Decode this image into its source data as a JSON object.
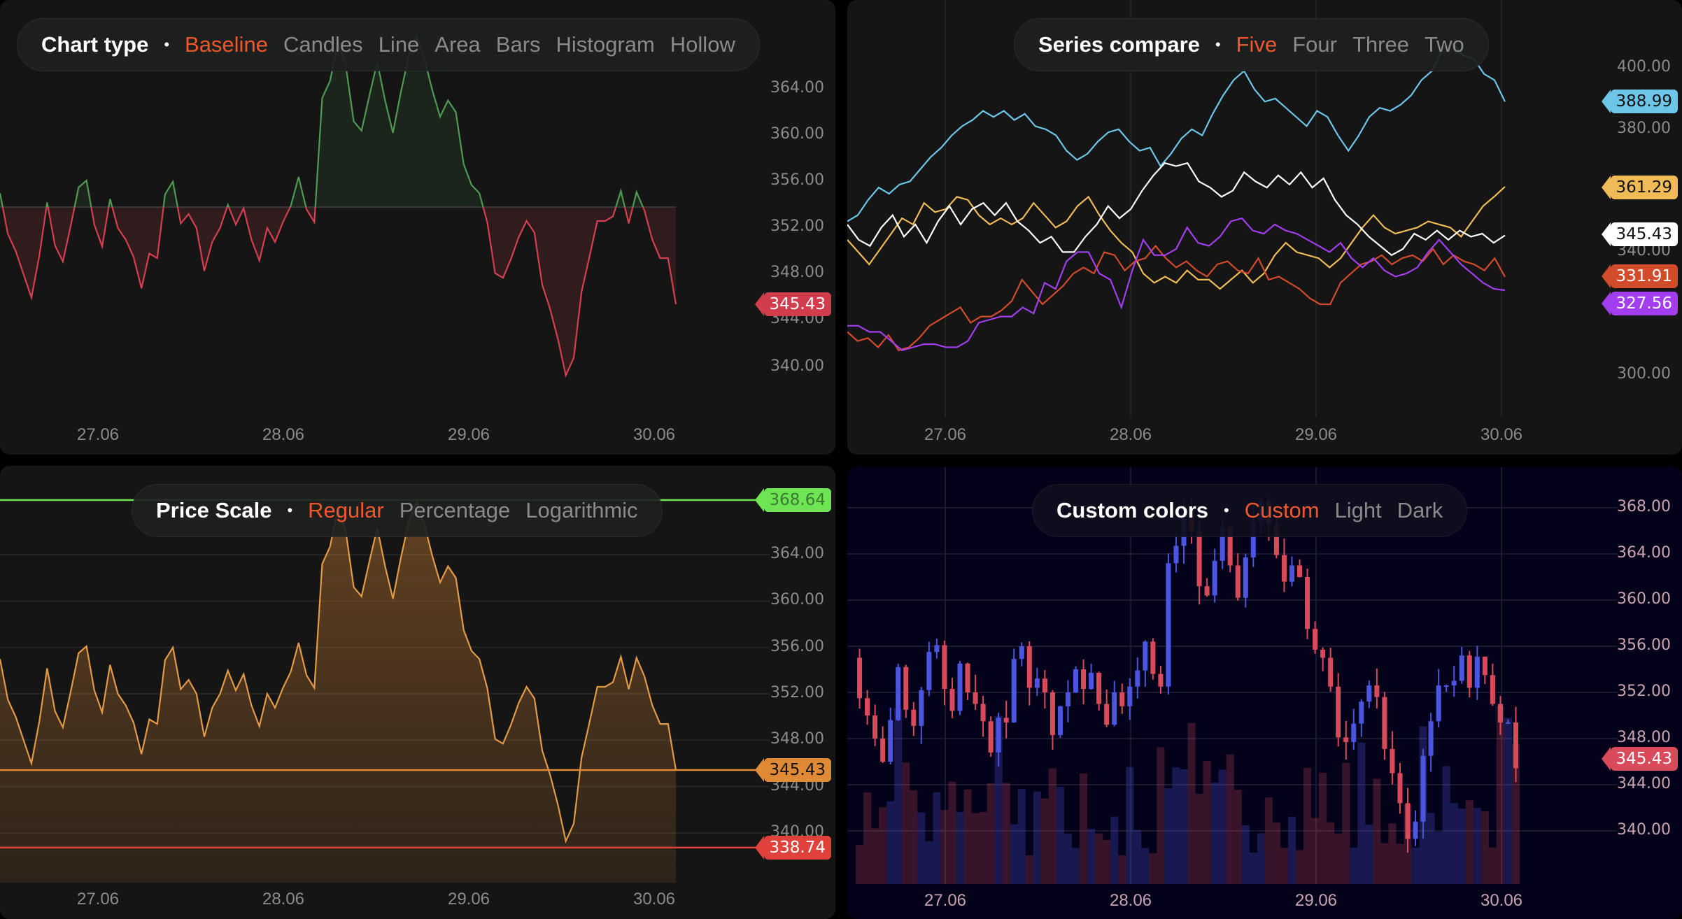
{
  "panels": {
    "baseline": {
      "toolbar": {
        "title": "Chart type",
        "options": [
          "Baseline",
          "Candles",
          "Line",
          "Area",
          "Bars",
          "Histogram",
          "Hollow"
        ],
        "active": 0
      },
      "scale": [
        "364.00",
        "360.00",
        "356.00",
        "352.00",
        "348.00",
        "344.00",
        "340.00"
      ],
      "time": [
        "27.06",
        "28.06",
        "29.06",
        "30.06"
      ],
      "last_price": "345.43",
      "colors": {
        "up": "#4f9a52",
        "down": "#d63f4f",
        "baseline": "#3a3a3a",
        "last": "#d23d4e"
      }
    },
    "compare": {
      "toolbar": {
        "title": "Series compare",
        "options": [
          "Five",
          "Four",
          "Three",
          "Two"
        ],
        "active": 0
      },
      "scale": [
        "400.00",
        "380.00",
        "340.00",
        "300.00"
      ],
      "time": [
        "27.06",
        "28.06",
        "29.06",
        "30.06"
      ],
      "tags": [
        {
          "value": "388.99",
          "color": "#6dc6e8",
          "text": "#111111"
        },
        {
          "value": "361.29",
          "color": "#efbb57",
          "text": "#111111"
        },
        {
          "value": "345.43",
          "color": "#ffffff",
          "text": "#111111"
        },
        {
          "value": "331.91",
          "color": "#d24b2a",
          "text": "#ffffff"
        },
        {
          "value": "327.56",
          "color": "#a23ef0",
          "text": "#ffffff"
        }
      ]
    },
    "pricescale": {
      "toolbar": {
        "title": "Price Scale",
        "options": [
          "Regular",
          "Percentage",
          "Logarithmic"
        ],
        "active": 0
      },
      "scale": [
        "364.00",
        "360.00",
        "356.00",
        "352.00",
        "348.00",
        "344.00",
        "340.00"
      ],
      "time": [
        "27.06",
        "28.06",
        "29.06",
        "30.06"
      ],
      "tags": [
        {
          "value": "368.64",
          "color": "#6ee553",
          "text": "#3b7a33",
          "role": "high"
        },
        {
          "value": "345.43",
          "color": "#e08a35",
          "text": "#111111",
          "role": "last"
        },
        {
          "value": "338.74",
          "color": "#e0413b",
          "text": "#ffffff",
          "role": "low"
        }
      ]
    },
    "custom": {
      "toolbar": {
        "title": "Custom colors",
        "options": [
          "Custom",
          "Light",
          "Dark"
        ],
        "active": 0
      },
      "scale": [
        "368.00",
        "364.00",
        "360.00",
        "356.00",
        "352.00",
        "348.00",
        "344.00",
        "340.00"
      ],
      "time": [
        "27.06",
        "28.06",
        "29.06",
        "30.06"
      ],
      "last_price": "345.43",
      "colors": {
        "up": "#4b55e0",
        "down": "#d94b5a",
        "bg": "#03021a",
        "scale_text": "#c9a3ad"
      }
    }
  },
  "chart_data": [
    {
      "type": "line",
      "title": "Chart type: Baseline",
      "x": [
        "27.06",
        "28.06",
        "29.06",
        "30.06"
      ],
      "baseline": 353.8,
      "ylim": [
        337,
        368
      ],
      "values": [
        355,
        351.5,
        350,
        348,
        346,
        349.6,
        354.2,
        350.5,
        349.1,
        352.2,
        355.5,
        356.1,
        352.3,
        350.4,
        354.5,
        352.0,
        351.0,
        349.5,
        346.8,
        349.8,
        349.4,
        354.9,
        356.0,
        352.4,
        353.2,
        352.0,
        348.3,
        350.8,
        352.0,
        354.0,
        352.3,
        353.7,
        351.0,
        349.2,
        352.0,
        350.8,
        352.5,
        353.9,
        356.4,
        353.6,
        352.5,
        363.2,
        364.7,
        368.0,
        366.0,
        361.2,
        360.4,
        363.4,
        366.3,
        363.0,
        360.2,
        363.7,
        366.8,
        368.6,
        366.6,
        363.9,
        361.6,
        363.0,
        362.0,
        357.5,
        355.7,
        355.0,
        352.5,
        348.1,
        347.7,
        349.3,
        351.2,
        352.6,
        351.6,
        347.1,
        345.0,
        342.4,
        339.3,
        340.8,
        346.5,
        349.5,
        352.6,
        352.6,
        353.0,
        355.2,
        352.4,
        355.1,
        353.5,
        351.0,
        349.4,
        349.4,
        345.43
      ]
    },
    {
      "type": "line",
      "title": "Series compare",
      "x": [
        "27.06",
        "28.06",
        "29.06",
        "30.06"
      ],
      "ylim": [
        290,
        405
      ],
      "series": [
        {
          "name": "cyan",
          "color": "#6dc6e8",
          "last": 388.99
        },
        {
          "name": "yellow",
          "color": "#efbb57",
          "last": 361.29
        },
        {
          "name": "white",
          "color": "#ffffff",
          "last": 345.43
        },
        {
          "name": "red",
          "color": "#d24b2a",
          "last": 331.91
        },
        {
          "name": "purple",
          "color": "#a23ef0",
          "last": 327.56
        }
      ]
    },
    {
      "type": "area",
      "title": "Price Scale: Regular",
      "x": [
        "27.06",
        "28.06",
        "29.06",
        "30.06"
      ],
      "ylim": [
        336,
        370
      ],
      "high": 368.64,
      "last": 345.43,
      "low": 338.74
    },
    {
      "type": "candlestick",
      "title": "Custom colors",
      "x": [
        "27.06",
        "28.06",
        "29.06",
        "30.06"
      ],
      "ylim": [
        336,
        370
      ],
      "last": 345.43,
      "volume": true
    }
  ]
}
